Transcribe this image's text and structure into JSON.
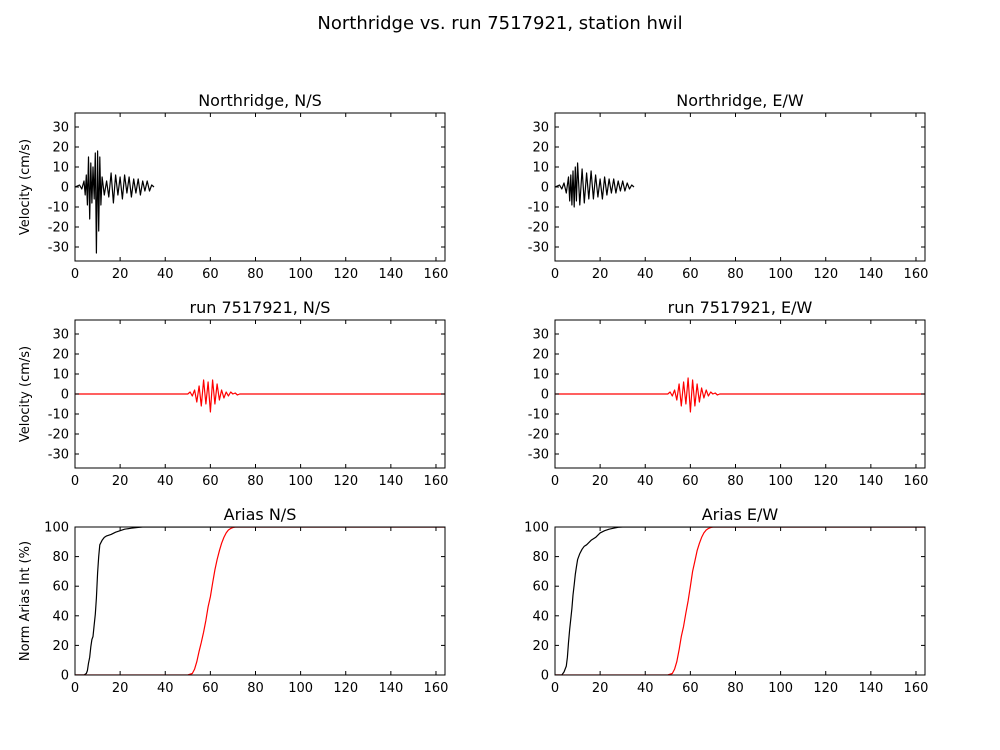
{
  "figure": {
    "suptitle": "Northridge vs. run 7517921, station hwil"
  },
  "chart_data": [
    {
      "type": "line",
      "panel": "top-left",
      "title": "Northridge, N/S",
      "xlabel": "",
      "ylabel": "Velocity (cm/s)",
      "xlim": [
        0,
        164
      ],
      "ylim": [
        -37,
        37
      ],
      "xticks": [
        0,
        20,
        40,
        60,
        80,
        100,
        120,
        140,
        160
      ],
      "yticks": [
        -30,
        -20,
        -10,
        0,
        10,
        20,
        30
      ],
      "series": [
        {
          "color": "#000000",
          "x": [
            0,
            2,
            3,
            4,
            4.5,
            5,
            5.5,
            6,
            6.5,
            7,
            7.5,
            8,
            8.5,
            9,
            9.5,
            10,
            10.5,
            11,
            11.5,
            12,
            13,
            14,
            15,
            16,
            17,
            18,
            19,
            20,
            21,
            22,
            23,
            24,
            25,
            26,
            27,
            28,
            29,
            30,
            31,
            32,
            33,
            34,
            35
          ],
          "y": [
            0,
            1,
            -1,
            3,
            -4,
            6,
            -9,
            15,
            -16,
            12,
            -8,
            10,
            -6,
            17,
            -33,
            18,
            -22,
            15,
            -9,
            5,
            -4,
            3,
            -5,
            7,
            -8,
            6,
            -4,
            5,
            -6,
            6,
            -3,
            5,
            -5,
            4,
            -3,
            4,
            -4,
            3,
            -2,
            3,
            -2,
            1,
            0
          ]
        }
      ]
    },
    {
      "type": "line",
      "panel": "top-right",
      "title": "Northridge, E/W",
      "xlabel": "",
      "ylabel": "",
      "xlim": [
        0,
        164
      ],
      "ylim": [
        -37,
        37
      ],
      "xticks": [
        0,
        20,
        40,
        60,
        80,
        100,
        120,
        140,
        160
      ],
      "yticks": [
        -30,
        -20,
        -10,
        0,
        10,
        20,
        30
      ],
      "series": [
        {
          "color": "#000000",
          "x": [
            0,
            2,
            3,
            4,
            5,
            6,
            6.5,
            7,
            7.5,
            8,
            8.5,
            9,
            9.5,
            10,
            11,
            12,
            13,
            14,
            15,
            16,
            17,
            18,
            19,
            20,
            21,
            22,
            23,
            24,
            25,
            26,
            27,
            28,
            29,
            30,
            31,
            32,
            33,
            34,
            35
          ],
          "y": [
            0,
            1,
            -1,
            2,
            -3,
            5,
            -7,
            6,
            -9,
            8,
            -10,
            10,
            -7,
            12,
            -9,
            9,
            -8,
            7,
            -6,
            8,
            -6,
            6,
            -5,
            4,
            -6,
            5,
            -4,
            4,
            -3,
            4,
            -3,
            3,
            -2,
            3,
            -2,
            2,
            -1,
            1,
            0
          ]
        }
      ]
    },
    {
      "type": "line",
      "panel": "middle-left",
      "title": "run 7517921, N/S",
      "xlabel": "",
      "ylabel": "Velocity (cm/s)",
      "xlim": [
        0,
        164
      ],
      "ylim": [
        -37,
        37
      ],
      "xticks": [
        0,
        20,
        40,
        60,
        80,
        100,
        120,
        140,
        160
      ],
      "yticks": [
        -30,
        -20,
        -10,
        0,
        10,
        20,
        30
      ],
      "series": [
        {
          "color": "#ff0000",
          "x": [
            0,
            50,
            51,
            52,
            53,
            54,
            55,
            56,
            57,
            58,
            59,
            60,
            61,
            62,
            63,
            64,
            65,
            66,
            67,
            68,
            69,
            70,
            71,
            72,
            73,
            75,
            80,
            164
          ],
          "y": [
            0,
            0,
            1,
            -1,
            2,
            -4,
            4,
            -6,
            7,
            -5,
            6,
            -9,
            7,
            -5,
            5,
            -3,
            2,
            -2,
            1,
            -1,
            1,
            0,
            0.5,
            -0.5,
            0,
            0,
            0,
            0
          ]
        }
      ]
    },
    {
      "type": "line",
      "panel": "middle-right",
      "title": "run 7517921, E/W",
      "xlabel": "",
      "ylabel": "",
      "xlim": [
        0,
        164
      ],
      "ylim": [
        -37,
        37
      ],
      "xticks": [
        0,
        20,
        40,
        60,
        80,
        100,
        120,
        140,
        160
      ],
      "yticks": [
        -30,
        -20,
        -10,
        0,
        10,
        20,
        30
      ],
      "series": [
        {
          "color": "#ff0000",
          "x": [
            0,
            50,
            51,
            52,
            53,
            54,
            55,
            56,
            57,
            58,
            59,
            60,
            61,
            62,
            63,
            64,
            65,
            66,
            67,
            68,
            69,
            70,
            71,
            72,
            73,
            75,
            80,
            164
          ],
          "y": [
            0,
            0,
            1,
            -1,
            2,
            -3,
            5,
            -6,
            6,
            -5,
            8,
            -9,
            7,
            -6,
            5,
            -4,
            3,
            -2,
            2,
            -1,
            1,
            0,
            0.5,
            -0.5,
            0,
            0,
            0,
            0
          ]
        }
      ]
    },
    {
      "type": "line",
      "panel": "bottom-left",
      "title": "Arias N/S",
      "xlabel": "",
      "ylabel": "Norm Arias Int (%)",
      "xlim": [
        0,
        164
      ],
      "ylim": [
        0,
        100
      ],
      "xticks": [
        0,
        20,
        40,
        60,
        80,
        100,
        120,
        140,
        160
      ],
      "yticks": [
        0,
        20,
        40,
        60,
        80,
        100
      ],
      "series": [
        {
          "color": "#000000",
          "x": [
            0,
            4,
            5,
            5.5,
            6,
            6.5,
            7,
            7.5,
            8,
            8.5,
            9,
            9.5,
            10,
            10.5,
            11,
            12,
            13,
            14,
            16,
            18,
            20,
            22,
            25,
            28,
            30,
            35,
            164
          ],
          "y": [
            0,
            0,
            1,
            3,
            8,
            12,
            19,
            24,
            26,
            34,
            41,
            52,
            69,
            80,
            88,
            91,
            93,
            94,
            95,
            96.5,
            97.5,
            98.5,
            99.2,
            99.7,
            100,
            100,
            100
          ]
        },
        {
          "color": "#ff0000",
          "x": [
            0,
            50,
            52,
            53,
            54,
            55,
            56,
            57,
            58,
            59,
            60,
            61,
            62,
            63,
            64,
            65,
            66,
            67,
            68,
            69,
            70,
            71,
            72,
            164
          ],
          "y": [
            0,
            0,
            1,
            4,
            9,
            16,
            22,
            29,
            37,
            46,
            53,
            62,
            71,
            78,
            84,
            89,
            93,
            96,
            98,
            99,
            99.6,
            100,
            100,
            100
          ]
        }
      ]
    },
    {
      "type": "line",
      "panel": "bottom-right",
      "title": "Arias E/W",
      "xlabel": "",
      "ylabel": "",
      "xlim": [
        0,
        164
      ],
      "ylim": [
        0,
        100
      ],
      "xticks": [
        0,
        20,
        40,
        60,
        80,
        100,
        120,
        140,
        160
      ],
      "yticks": [
        0,
        20,
        40,
        60,
        80,
        100
      ],
      "series": [
        {
          "color": "#000000",
          "x": [
            0,
            3,
            4,
            5,
            5.5,
            6,
            6.5,
            7,
            7.5,
            8,
            8.5,
            9,
            9.5,
            10,
            11,
            12,
            13,
            14,
            16,
            18,
            20,
            22,
            24,
            26,
            28,
            30,
            164
          ],
          "y": [
            0,
            0,
            2,
            6,
            12,
            22,
            31,
            38,
            45,
            54,
            61,
            68,
            73,
            78,
            82,
            85,
            87,
            88,
            91,
            93,
            96,
            97.5,
            98.5,
            99.2,
            99.8,
            100,
            100
          ]
        },
        {
          "color": "#ff0000",
          "x": [
            0,
            50,
            52,
            53,
            54,
            55,
            56,
            57,
            58,
            59,
            60,
            61,
            62,
            63,
            64,
            65,
            66,
            67,
            68,
            69,
            70,
            72,
            164
          ],
          "y": [
            0,
            0,
            1,
            4,
            9,
            17,
            26,
            33,
            42,
            50,
            60,
            70,
            77,
            84,
            89,
            93,
            96,
            98,
            99,
            99.6,
            100,
            100,
            100
          ]
        }
      ]
    }
  ]
}
